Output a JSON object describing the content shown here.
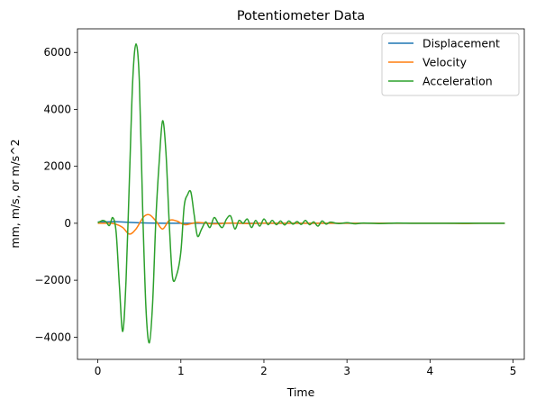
{
  "chart_data": {
    "type": "line",
    "title": "Potentiometer Data",
    "xlabel": "Time",
    "ylabel": "mm, m/s, or m/s^2",
    "xlim": [
      -0.245,
      5.135
    ],
    "ylim": [
      -4780,
      6830
    ],
    "xticks": [
      0,
      1,
      2,
      3,
      4,
      5
    ],
    "xtick_labels": [
      "0",
      "1",
      "2",
      "3",
      "4",
      "5"
    ],
    "yticks": [
      -4000,
      -2000,
      0,
      2000,
      4000,
      6000
    ],
    "ytick_labels": [
      "−4000",
      "−2000",
      "0",
      "2000",
      "4000",
      "6000"
    ],
    "grid": false,
    "legend_position": "top-right",
    "series": [
      {
        "name": "Displacement",
        "color": "#1f77b4",
        "x": [
          0,
          0.1,
          0.2,
          0.3,
          0.4,
          0.5,
          0.6,
          0.7,
          0.8,
          1.0,
          1.5,
          2.0,
          3.0,
          4.0,
          4.9
        ],
        "y": [
          45,
          50,
          55,
          45,
          30,
          15,
          10,
          5,
          0,
          0,
          0,
          0,
          0,
          0,
          0
        ]
      },
      {
        "name": "Velocity",
        "color": "#ff7f0e",
        "x": [
          0,
          0.1,
          0.2,
          0.3,
          0.38,
          0.46,
          0.55,
          0.62,
          0.7,
          0.78,
          0.86,
          0.95,
          1.05,
          1.2,
          1.4,
          1.6,
          1.8,
          2.0,
          2.2,
          2.4,
          2.6,
          2.8,
          3.0,
          3.2,
          3.5,
          4.0,
          4.2,
          4.4,
          4.6,
          4.9
        ],
        "y": [
          0,
          0,
          -20,
          -150,
          -380,
          -200,
          220,
          300,
          80,
          -200,
          100,
          80,
          -50,
          30,
          -20,
          10,
          -10,
          5,
          0,
          0,
          0,
          0,
          0,
          0,
          0,
          0,
          0,
          -10,
          0,
          0
        ],
        "smooth": true
      },
      {
        "name": "Acceleration",
        "color": "#2ca02c",
        "x": [
          0,
          0.06,
          0.1,
          0.14,
          0.18,
          0.22,
          0.26,
          0.3,
          0.34,
          0.38,
          0.42,
          0.46,
          0.5,
          0.54,
          0.58,
          0.62,
          0.66,
          0.7,
          0.74,
          0.78,
          0.82,
          0.86,
          0.9,
          0.95,
          1.0,
          1.04,
          1.08,
          1.12,
          1.16,
          1.2,
          1.25,
          1.3,
          1.35,
          1.4,
          1.45,
          1.5,
          1.55,
          1.6,
          1.65,
          1.7,
          1.75,
          1.8,
          1.85,
          1.9,
          1.95,
          2.0,
          2.05,
          2.1,
          2.15,
          2.2,
          2.25,
          2.3,
          2.35,
          2.4,
          2.45,
          2.5,
          2.55,
          2.6,
          2.65,
          2.7,
          2.75,
          2.8,
          2.9,
          3.0,
          3.1,
          3.2,
          3.4,
          3.6,
          3.8,
          4.0,
          4.2,
          4.4,
          4.6,
          4.8,
          4.9
        ],
        "y": [
          20,
          100,
          50,
          -80,
          200,
          -300,
          -2200,
          -3800,
          -2000,
          1500,
          5000,
          6300,
          5000,
          500,
          -3000,
          -4200,
          -2800,
          200,
          2200,
          3600,
          2500,
          0,
          -1900,
          -1800,
          -1000,
          600,
          1000,
          1100,
          300,
          -450,
          -200,
          50,
          -150,
          200,
          0,
          -150,
          150,
          250,
          -200,
          100,
          0,
          150,
          -150,
          100,
          -100,
          150,
          -50,
          100,
          -50,
          80,
          -60,
          80,
          -30,
          60,
          -40,
          100,
          -50,
          50,
          -100,
          80,
          -30,
          40,
          -10,
          20,
          -20,
          10,
          -10,
          10,
          0,
          0,
          0,
          0,
          0,
          0,
          0
        ],
        "smooth": true
      }
    ]
  }
}
